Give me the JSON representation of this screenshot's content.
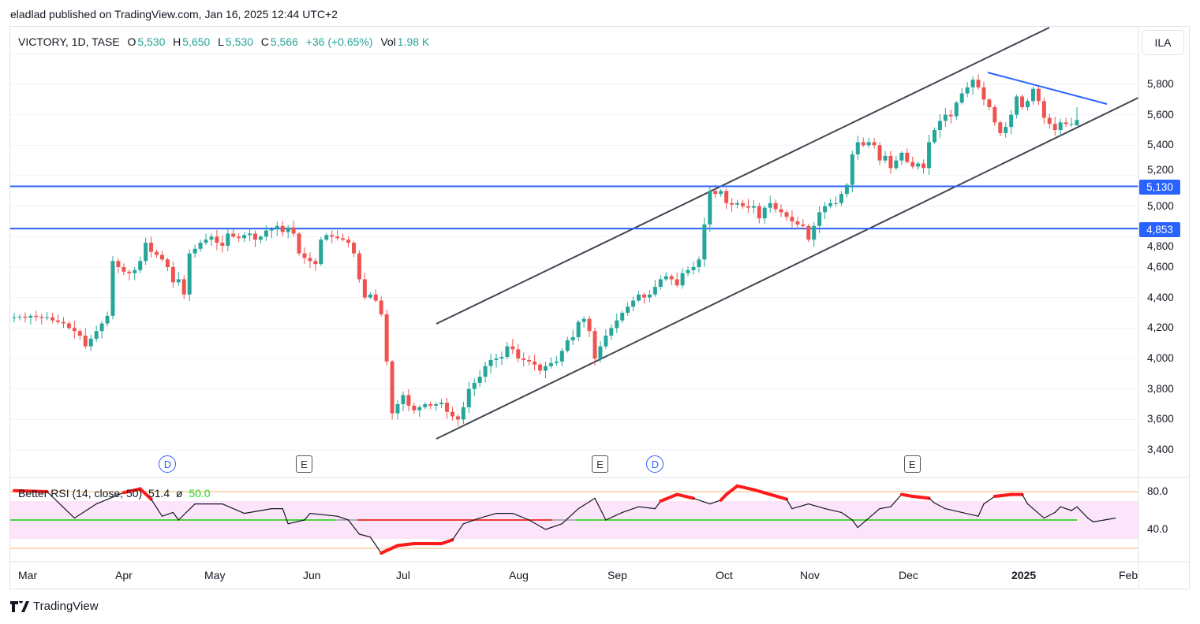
{
  "header": {
    "published": "eladlad published on TradingView.com, Jan 16, 2025 12:44 UTC+2"
  },
  "legend": {
    "symbol": "VICTORY, 1D, TASE",
    "o_label": "O",
    "o": "5,530",
    "h_label": "H",
    "h": "5,650",
    "l_label": "L",
    "l": "5,530",
    "c_label": "C",
    "c": "5,566",
    "change": "+36 (+0.65%)",
    "vol_label": "Vol",
    "vol": "1.98 K"
  },
  "currency": "ILA",
  "price_badges": [
    "5,130",
    "4,853"
  ],
  "rsi_legend": {
    "name": "Better RSI (14, close, 50)",
    "value": "51.4",
    "sym": "ø",
    "mid": "50.0"
  },
  "events": [
    {
      "type": "D",
      "bar": 28
    },
    {
      "type": "E",
      "bar": 53
    },
    {
      "type": "E",
      "bar": 107
    },
    {
      "type": "D",
      "bar": 117
    },
    {
      "type": "E",
      "bar": 164
    }
  ],
  "footer": {
    "brand": "TradingView"
  },
  "colors": {
    "up": "#26a69a",
    "down": "#ef5350",
    "level": "#2962ff",
    "channel": "#434651",
    "rsi_mid": "#4cd43c"
  },
  "chart_data": [
    {
      "type": "candlestick",
      "title": "VICTORY, 1D, TASE",
      "ylabel": "ILA",
      "ylim": [
        3300,
        6000
      ],
      "y_ticks": [
        "3,400",
        "3,600",
        "3,800",
        "4,000",
        "4,200",
        "4,400",
        "4,600",
        "4,800",
        "5,000",
        "5,200",
        "5,400",
        "5,600",
        "5,800"
      ],
      "x_ticks": [
        "Mar",
        "Apr",
        "May",
        "Jun",
        "Jul",
        "Aug",
        "Sep",
        "Oct",
        "Nov",
        "Dec",
        "2025",
        "Feb"
      ],
      "horizontal_levels": [
        5130,
        4853
      ],
      "closes": [
        4270,
        4275,
        4268,
        4280,
        4272,
        4265,
        4270,
        4250,
        4240,
        4230,
        4200,
        4180,
        4150,
        4080,
        4130,
        4180,
        4230,
        4280,
        4640,
        4600,
        4570,
        4560,
        4580,
        4640,
        4760,
        4700,
        4680,
        4650,
        4600,
        4500,
        4520,
        4420,
        4690,
        4720,
        4760,
        4780,
        4800,
        4760,
        4740,
        4820,
        4800,
        4790,
        4810,
        4820,
        4780,
        4800,
        4840,
        4850,
        4870,
        4830,
        4860,
        4820,
        4690,
        4660,
        4640,
        4620,
        4780,
        4810,
        4800,
        4790,
        4780,
        4760,
        4690,
        4520,
        4400,
        4420,
        4380,
        4290,
        3980,
        3640,
        3700,
        3760,
        3690,
        3660,
        3680,
        3700,
        3690,
        3700,
        3710,
        3650,
        3620,
        3600,
        3680,
        3800,
        3840,
        3880,
        3950,
        3990,
        4000,
        4010,
        4080,
        4060,
        4000,
        3990,
        3980,
        3960,
        3920,
        3950,
        3970,
        3980,
        4050,
        4120,
        4140,
        4240,
        4260,
        4180,
        4000,
        4080,
        4150,
        4200,
        4250,
        4300,
        4340,
        4380,
        4420,
        4400,
        4420,
        4470,
        4520,
        4540,
        4520,
        4480,
        4560,
        4580,
        4600,
        4650,
        4880,
        5100,
        5080,
        5100,
        5020,
        5010,
        5020,
        5000,
        4990,
        5000,
        4920,
        4990,
        5020,
        4980,
        4960,
        4930,
        4900,
        4880,
        4870,
        4780,
        4870,
        4960,
        5000,
        5020,
        5020,
        5080,
        5140,
        5340,
        5420,
        5400,
        5420,
        5400,
        5300,
        5330,
        5250,
        5300,
        5350,
        5290,
        5260,
        5280,
        5250,
        5420,
        5500,
        5560,
        5600,
        5590,
        5680,
        5740,
        5780,
        5830,
        5780,
        5700,
        5650,
        5550,
        5480,
        5520,
        5600,
        5720,
        5650,
        5690,
        5770,
        5690,
        5580,
        5540,
        5500,
        5550,
        5540,
        5540,
        5566
      ],
      "last_bar": {
        "open": 5530,
        "high": 5650,
        "low": 5530,
        "close": 5566
      }
    },
    {
      "type": "line",
      "title": "Better RSI (14, close, 50)",
      "ylim": [
        10,
        90
      ],
      "y_ticks": [
        "80.0",
        "40.0"
      ],
      "bands": {
        "upper": 80,
        "lower": 20,
        "zone_high": 70,
        "zone_low": 30,
        "mid": 50
      },
      "points": [
        [
          0,
          81
        ],
        [
          6,
          80
        ],
        [
          11,
          52
        ],
        [
          15,
          67
        ],
        [
          20,
          79
        ],
        [
          23,
          83
        ],
        [
          25,
          72
        ],
        [
          27,
          54
        ],
        [
          29,
          58
        ],
        [
          30,
          50
        ],
        [
          33,
          67
        ],
        [
          38,
          67
        ],
        [
          42,
          57
        ],
        [
          47,
          62
        ],
        [
          49,
          62
        ],
        [
          50,
          46
        ],
        [
          53,
          50
        ],
        [
          54,
          57
        ],
        [
          59,
          54
        ],
        [
          61,
          50
        ],
        [
          63,
          35
        ],
        [
          65,
          32
        ],
        [
          67,
          15
        ],
        [
          70,
          23
        ],
        [
          73,
          25
        ],
        [
          78,
          25
        ],
        [
          80,
          29
        ],
        [
          82,
          46
        ],
        [
          85,
          52
        ],
        [
          88,
          57
        ],
        [
          91,
          57
        ],
        [
          94,
          50
        ],
        [
          97,
          40
        ],
        [
          100,
          46
        ],
        [
          103,
          62
        ],
        [
          106,
          73
        ],
        [
          108,
          50
        ],
        [
          111,
          58
        ],
        [
          114,
          64
        ],
        [
          117,
          62
        ],
        [
          118,
          70
        ],
        [
          121,
          77
        ],
        [
          124,
          73
        ],
        [
          127,
          67
        ],
        [
          129,
          71
        ],
        [
          130,
          77
        ],
        [
          132,
          86
        ],
        [
          135,
          82
        ],
        [
          138,
          77
        ],
        [
          141,
          72
        ],
        [
          142,
          62
        ],
        [
          145,
          67
        ],
        [
          148,
          62
        ],
        [
          151,
          58
        ],
        [
          153,
          50
        ],
        [
          154,
          42
        ],
        [
          156,
          52
        ],
        [
          158,
          62
        ],
        [
          160,
          64
        ],
        [
          162,
          77
        ],
        [
          164,
          75
        ],
        [
          167,
          73
        ],
        [
          168,
          68
        ],
        [
          170,
          62
        ],
        [
          173,
          58
        ],
        [
          176,
          54
        ],
        [
          177,
          67
        ],
        [
          179,
          75
        ],
        [
          182,
          77
        ],
        [
          184,
          77
        ],
        [
          185,
          67
        ],
        [
          188,
          52
        ],
        [
          190,
          58
        ],
        [
          191,
          64
        ],
        [
          193,
          60
        ],
        [
          194,
          64
        ],
        [
          196,
          52
        ],
        [
          197,
          48
        ],
        [
          199,
          50
        ],
        [
          201,
          52
        ]
      ]
    }
  ]
}
